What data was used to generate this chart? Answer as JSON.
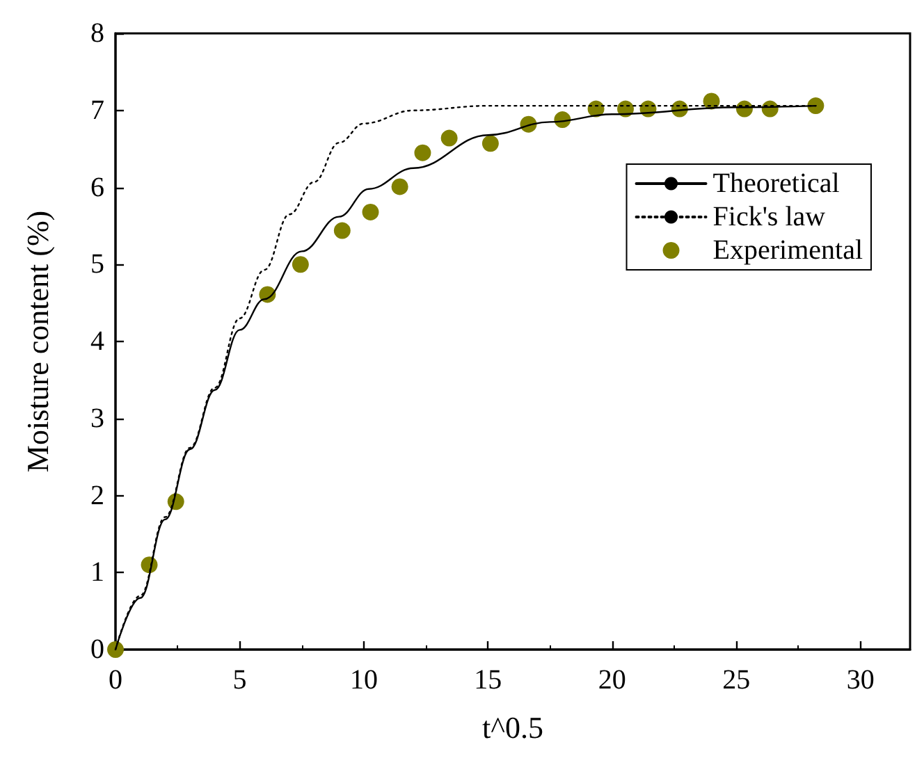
{
  "chart_data": {
    "type": "line",
    "xlabel": "t^0.5",
    "ylabel": "Moisture content (%)",
    "xlim": [
      0,
      32
    ],
    "xticks": [
      0,
      5,
      10,
      15,
      20,
      25,
      30
    ],
    "ylim": [
      0,
      8
    ],
    "yticks": [
      0,
      1,
      2,
      3,
      4,
      5,
      6,
      7,
      8
    ],
    "grid": false,
    "legend": "top right",
    "series": [
      {
        "name": "Theoretical",
        "color": "#000000",
        "line_style": "solid",
        "marker": "none",
        "x": [
          0,
          1,
          2,
          3,
          4,
          5,
          6,
          7.5,
          9,
          10.2,
          12,
          15,
          17.5,
          20,
          25,
          28.2
        ],
        "values": [
          0,
          0.67,
          1.69,
          2.6,
          3.37,
          4.15,
          4.55,
          5.17,
          5.62,
          5.98,
          6.25,
          6.68,
          6.85,
          6.95,
          7.04,
          7.06
        ]
      },
      {
        "name": "Fick's law",
        "color": "#000000",
        "line_style": "dotted",
        "marker": "none",
        "x": [
          0,
          1,
          2,
          3,
          4,
          5,
          6,
          7,
          8,
          9,
          10,
          12,
          15,
          20,
          25,
          28.2
        ],
        "values": [
          0,
          0.7,
          1.72,
          2.62,
          3.4,
          4.3,
          4.93,
          5.65,
          6.07,
          6.58,
          6.83,
          7.0,
          7.06,
          7.06,
          7.06,
          7.06
        ]
      },
      {
        "name": "Experimental",
        "type": "scatter",
        "color": "#808000",
        "marker": "circle",
        "x": [
          0,
          1.36,
          2.43,
          6.12,
          7.45,
          9.13,
          10.27,
          11.45,
          12.37,
          13.44,
          15.1,
          16.63,
          18.0,
          19.35,
          20.54,
          21.45,
          22.72,
          24.0,
          25.33,
          26.36,
          28.2
        ],
        "values": [
          0,
          1.1,
          1.92,
          4.61,
          5.0,
          5.44,
          5.68,
          6.01,
          6.45,
          6.64,
          6.57,
          6.82,
          6.88,
          7.02,
          7.02,
          7.02,
          7.02,
          7.12,
          7.02,
          7.02,
          7.06
        ]
      }
    ]
  }
}
